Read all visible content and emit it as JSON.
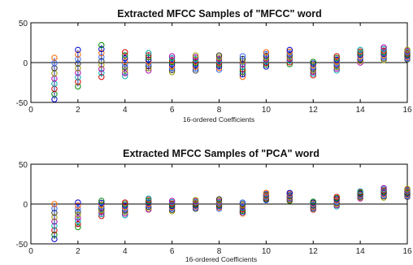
{
  "chart_data": [
    {
      "type": "scatter",
      "title": "Extracted MFCC Samples of \"MFCC\" word",
      "xlabel": "16-ordered Coefficients",
      "ylabel": "",
      "xlim": [
        0,
        16
      ],
      "ylim": [
        -50,
        50
      ],
      "xticks": [
        "0",
        "2",
        "4",
        "6",
        "8",
        "10",
        "12",
        "14",
        "16"
      ],
      "yticks": [
        "-50",
        "0",
        "50"
      ],
      "grid": false,
      "zero_line": true,
      "x": [
        1,
        2,
        3,
        4,
        5,
        6,
        7,
        8,
        9,
        10,
        11,
        12,
        13,
        14,
        15,
        16
      ],
      "range_min": [
        -46,
        -30,
        -18,
        -17,
        -10,
        -12,
        -10,
        -9,
        -18,
        -5,
        -2,
        -16,
        -10,
        0,
        3,
        4
      ],
      "range_max": [
        6,
        16,
        22,
        13,
        12,
        8,
        9,
        9,
        8,
        13,
        16,
        1,
        8,
        16,
        19,
        16
      ]
    },
    {
      "type": "scatter",
      "title": "Extracted MFCC Samples of \"PCA\" word",
      "xlabel": "16-ordered Coefficients",
      "ylabel": "",
      "xlim": [
        0,
        16
      ],
      "ylim": [
        -50,
        50
      ],
      "xticks": [
        "0",
        "2",
        "4",
        "6",
        "8",
        "10",
        "12",
        "14",
        "16"
      ],
      "yticks": [
        "-50",
        "0",
        "50"
      ],
      "grid": false,
      "zero_line": true,
      "x": [
        1,
        2,
        3,
        4,
        5,
        6,
        7,
        8,
        9,
        10,
        11,
        12,
        13,
        14,
        15,
        16
      ],
      "range_min": [
        -44,
        -29,
        -15,
        -14,
        -7,
        -9,
        -6,
        -6,
        -12,
        5,
        4,
        -7,
        -3,
        7,
        8,
        9
      ],
      "range_max": [
        0,
        2,
        4,
        2,
        7,
        4,
        5,
        6,
        2,
        14,
        14,
        3,
        9,
        16,
        20,
        19
      ]
    }
  ],
  "colors": {
    "markers": [
      "#0000cc",
      "#008800",
      "#cc0000",
      "#00aaaa",
      "#aa00aa",
      "#999900",
      "#333333",
      "#3366ff",
      "#ff6600"
    ],
    "axis": "#000000"
  }
}
